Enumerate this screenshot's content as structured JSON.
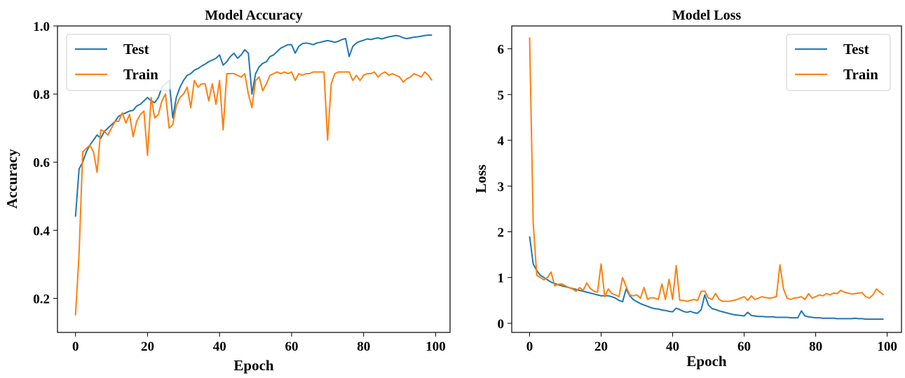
{
  "chart_data": [
    {
      "type": "line",
      "title": "Model Accuracy",
      "xlabel": "Epoch",
      "ylabel": "Accuracy",
      "xlim": [
        -5,
        104
      ],
      "ylim": [
        0.1,
        1.0
      ],
      "xticks": [
        0,
        20,
        40,
        60,
        80,
        100
      ],
      "yticks": [
        0.2,
        0.4,
        0.6,
        0.8,
        1.0
      ],
      "ytick_labels": [
        "0.2",
        "0.4",
        "0.6",
        "0.8",
        "1.0"
      ],
      "grid": false,
      "legend_position": "top-left",
      "series": [
        {
          "name": "Test",
          "color": "#1f77b4",
          "x": [
            0,
            1,
            2,
            3,
            4,
            5,
            6,
            7,
            8,
            9,
            10,
            11,
            12,
            13,
            14,
            15,
            16,
            17,
            18,
            19,
            20,
            21,
            22,
            23,
            24,
            25,
            26,
            27,
            28,
            29,
            30,
            31,
            32,
            33,
            34,
            35,
            36,
            37,
            38,
            39,
            40,
            41,
            42,
            43,
            44,
            45,
            46,
            47,
            48,
            49,
            50,
            51,
            52,
            53,
            54,
            55,
            56,
            57,
            58,
            59,
            60,
            61,
            62,
            63,
            64,
            65,
            66,
            67,
            68,
            69,
            70,
            71,
            72,
            73,
            74,
            75,
            76,
            77,
            78,
            79,
            80,
            81,
            82,
            83,
            84,
            85,
            86,
            87,
            88,
            89,
            90,
            91,
            92,
            93,
            94,
            95,
            96,
            97,
            98,
            99
          ],
          "y": [
            0.44,
            0.58,
            0.6,
            0.63,
            0.65,
            0.665,
            0.68,
            0.67,
            0.69,
            0.7,
            0.71,
            0.72,
            0.735,
            0.74,
            0.745,
            0.75,
            0.752,
            0.765,
            0.77,
            0.78,
            0.79,
            0.78,
            0.775,
            0.79,
            0.82,
            0.83,
            0.84,
            0.73,
            0.79,
            0.82,
            0.84,
            0.855,
            0.86,
            0.87,
            0.875,
            0.882,
            0.888,
            0.895,
            0.9,
            0.905,
            0.915,
            0.885,
            0.895,
            0.91,
            0.92,
            0.905,
            0.915,
            0.93,
            0.92,
            0.8,
            0.86,
            0.88,
            0.89,
            0.895,
            0.91,
            0.915,
            0.925,
            0.935,
            0.94,
            0.945,
            0.945,
            0.92,
            0.94,
            0.948,
            0.95,
            0.948,
            0.945,
            0.95,
            0.952,
            0.955,
            0.957,
            0.955,
            0.952,
            0.955,
            0.96,
            0.963,
            0.91,
            0.94,
            0.95,
            0.955,
            0.958,
            0.962,
            0.96,
            0.963,
            0.965,
            0.962,
            0.965,
            0.968,
            0.97,
            0.972,
            0.97,
            0.965,
            0.963,
            0.965,
            0.967,
            0.968,
            0.97,
            0.972,
            0.973,
            0.973
          ]
        },
        {
          "name": "Train",
          "color": "#ff7f0e",
          "x": [
            0,
            1,
            2,
            3,
            4,
            5,
            6,
            7,
            8,
            9,
            10,
            11,
            12,
            13,
            14,
            15,
            16,
            17,
            18,
            19,
            20,
            21,
            22,
            23,
            24,
            25,
            26,
            27,
            28,
            29,
            30,
            31,
            32,
            33,
            34,
            35,
            36,
            37,
            38,
            39,
            40,
            41,
            42,
            43,
            44,
            45,
            46,
            47,
            48,
            49,
            50,
            51,
            52,
            53,
            54,
            55,
            56,
            57,
            58,
            59,
            60,
            61,
            62,
            63,
            64,
            65,
            66,
            67,
            68,
            69,
            70,
            71,
            72,
            73,
            74,
            75,
            76,
            77,
            78,
            79,
            80,
            81,
            82,
            83,
            84,
            85,
            86,
            87,
            88,
            89,
            90,
            91,
            92,
            93,
            94,
            95,
            96,
            97,
            98,
            99
          ],
          "y": [
            0.15,
            0.33,
            0.63,
            0.64,
            0.65,
            0.63,
            0.57,
            0.695,
            0.69,
            0.68,
            0.7,
            0.72,
            0.72,
            0.745,
            0.715,
            0.74,
            0.675,
            0.72,
            0.74,
            0.75,
            0.62,
            0.79,
            0.73,
            0.74,
            0.78,
            0.8,
            0.7,
            0.71,
            0.765,
            0.79,
            0.8,
            0.82,
            0.76,
            0.84,
            0.82,
            0.83,
            0.83,
            0.78,
            0.83,
            0.77,
            0.84,
            0.695,
            0.86,
            0.86,
            0.86,
            0.855,
            0.85,
            0.86,
            0.8,
            0.76,
            0.84,
            0.85,
            0.81,
            0.83,
            0.855,
            0.86,
            0.865,
            0.86,
            0.865,
            0.86,
            0.865,
            0.84,
            0.86,
            0.855,
            0.86,
            0.86,
            0.865,
            0.865,
            0.865,
            0.865,
            0.665,
            0.83,
            0.86,
            0.865,
            0.865,
            0.865,
            0.865,
            0.84,
            0.855,
            0.84,
            0.855,
            0.86,
            0.86,
            0.865,
            0.85,
            0.86,
            0.865,
            0.855,
            0.86,
            0.855,
            0.85,
            0.835,
            0.845,
            0.85,
            0.86,
            0.855,
            0.85,
            0.865,
            0.855,
            0.84
          ]
        }
      ]
    },
    {
      "type": "line",
      "title": "Model Loss",
      "xlabel": "Epoch",
      "ylabel": "Loss",
      "xlim": [
        -5,
        104
      ],
      "ylim": [
        -0.2,
        6.5
      ],
      "xticks": [
        0,
        20,
        40,
        60,
        80,
        100
      ],
      "yticks": [
        0,
        1,
        2,
        3,
        4,
        5,
        6
      ],
      "ytick_labels": [
        "0",
        "1",
        "2",
        "3",
        "4",
        "5",
        "6"
      ],
      "grid": false,
      "legend_position": "top-right",
      "series": [
        {
          "name": "Test",
          "color": "#1f77b4",
          "x": [
            0,
            1,
            2,
            3,
            4,
            5,
            6,
            7,
            8,
            9,
            10,
            11,
            12,
            13,
            14,
            15,
            16,
            17,
            18,
            19,
            20,
            21,
            22,
            23,
            24,
            25,
            26,
            27,
            28,
            29,
            30,
            31,
            32,
            33,
            34,
            35,
            36,
            37,
            38,
            39,
            40,
            41,
            42,
            43,
            44,
            45,
            46,
            47,
            48,
            49,
            50,
            51,
            52,
            53,
            54,
            55,
            56,
            57,
            58,
            59,
            60,
            61,
            62,
            63,
            64,
            65,
            66,
            67,
            68,
            69,
            70,
            71,
            72,
            73,
            74,
            75,
            76,
            77,
            78,
            79,
            80,
            81,
            82,
            83,
            84,
            85,
            86,
            87,
            88,
            89,
            90,
            91,
            92,
            93,
            94,
            95,
            96,
            97,
            98,
            99
          ],
          "y": [
            1.9,
            1.3,
            1.15,
            1.05,
            1.0,
            0.95,
            0.9,
            0.87,
            0.84,
            0.82,
            0.8,
            0.78,
            0.76,
            0.74,
            0.72,
            0.7,
            0.68,
            0.66,
            0.64,
            0.62,
            0.6,
            0.6,
            0.6,
            0.58,
            0.55,
            0.5,
            0.47,
            0.75,
            0.6,
            0.52,
            0.47,
            0.43,
            0.4,
            0.37,
            0.34,
            0.32,
            0.31,
            0.29,
            0.28,
            0.26,
            0.25,
            0.33,
            0.3,
            0.26,
            0.24,
            0.26,
            0.23,
            0.22,
            0.3,
            0.62,
            0.4,
            0.32,
            0.3,
            0.27,
            0.25,
            0.23,
            0.21,
            0.19,
            0.18,
            0.17,
            0.16,
            0.24,
            0.17,
            0.16,
            0.15,
            0.15,
            0.14,
            0.14,
            0.14,
            0.13,
            0.13,
            0.13,
            0.13,
            0.12,
            0.12,
            0.12,
            0.27,
            0.16,
            0.14,
            0.13,
            0.12,
            0.12,
            0.11,
            0.11,
            0.11,
            0.11,
            0.1,
            0.1,
            0.1,
            0.1,
            0.1,
            0.11,
            0.1,
            0.1,
            0.09,
            0.09,
            0.09,
            0.09,
            0.09,
            0.09
          ]
        },
        {
          "name": "Train",
          "color": "#ff7f0e",
          "x": [
            0,
            1,
            2,
            3,
            4,
            5,
            6,
            7,
            8,
            9,
            10,
            11,
            12,
            13,
            14,
            15,
            16,
            17,
            18,
            19,
            20,
            21,
            22,
            23,
            24,
            25,
            26,
            27,
            28,
            29,
            30,
            31,
            32,
            33,
            34,
            35,
            36,
            37,
            38,
            39,
            40,
            41,
            42,
            43,
            44,
            45,
            46,
            47,
            48,
            49,
            50,
            51,
            52,
            53,
            54,
            55,
            56,
            57,
            58,
            59,
            60,
            61,
            62,
            63,
            64,
            65,
            66,
            67,
            68,
            69,
            70,
            71,
            72,
            73,
            74,
            75,
            76,
            77,
            78,
            79,
            80,
            81,
            82,
            83,
            84,
            85,
            86,
            87,
            88,
            89,
            90,
            91,
            92,
            93,
            94,
            95,
            96,
            97,
            98,
            99
          ],
          "y": [
            6.25,
            2.2,
            1.05,
            1.0,
            0.95,
            1.0,
            1.12,
            0.82,
            0.85,
            0.86,
            0.82,
            0.78,
            0.75,
            0.7,
            0.78,
            0.72,
            0.88,
            0.76,
            0.7,
            0.68,
            1.3,
            0.58,
            0.75,
            0.65,
            0.62,
            0.58,
            1.0,
            0.8,
            0.62,
            0.6,
            0.62,
            0.55,
            0.78,
            0.52,
            0.56,
            0.55,
            0.52,
            0.86,
            0.52,
            0.96,
            0.52,
            1.26,
            0.5,
            0.5,
            0.48,
            0.5,
            0.52,
            0.5,
            0.7,
            0.7,
            0.55,
            0.52,
            0.65,
            0.52,
            0.48,
            0.48,
            0.48,
            0.5,
            0.52,
            0.55,
            0.58,
            0.5,
            0.6,
            0.52,
            0.55,
            0.58,
            0.56,
            0.55,
            0.56,
            0.58,
            1.28,
            0.75,
            0.55,
            0.52,
            0.55,
            0.56,
            0.58,
            0.52,
            0.65,
            0.55,
            0.58,
            0.62,
            0.6,
            0.65,
            0.62,
            0.66,
            0.65,
            0.72,
            0.68,
            0.66,
            0.64,
            0.65,
            0.66,
            0.67,
            0.58,
            0.55,
            0.62,
            0.75,
            0.68,
            0.62
          ]
        }
      ]
    }
  ]
}
